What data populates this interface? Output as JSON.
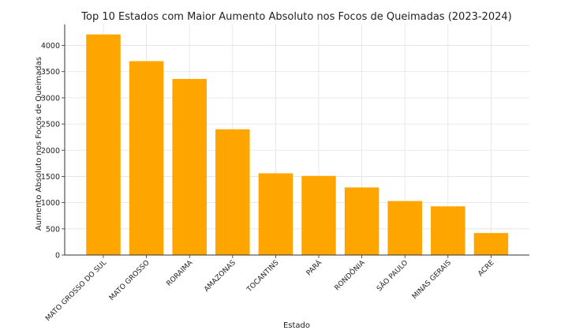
{
  "chart_data": {
    "type": "bar",
    "title": "Top 10 Estados com Maior Aumento Absoluto nos Focos de Queimadas (2023-2024)",
    "xlabel": "Estado",
    "ylabel": "Aumento Absoluto nos Focos de Queimadas",
    "categories": [
      "MATO GROSSO DO SUL",
      "MATO GROSSO",
      "RORAIMA",
      "AMAZONAS",
      "TOCANTINS",
      "PARÁ",
      "RONDÔNIA",
      "SÃO PAULO",
      "MINAS GERAIS",
      "ACRE"
    ],
    "values": [
      4210,
      3700,
      3360,
      2400,
      1560,
      1510,
      1290,
      1030,
      930,
      420
    ],
    "ylim": [
      0,
      4400
    ],
    "yticks": [
      0,
      500,
      1000,
      1500,
      2000,
      2500,
      3000,
      3500,
      4000
    ],
    "grid": true,
    "bar_color": "#FFA500"
  }
}
